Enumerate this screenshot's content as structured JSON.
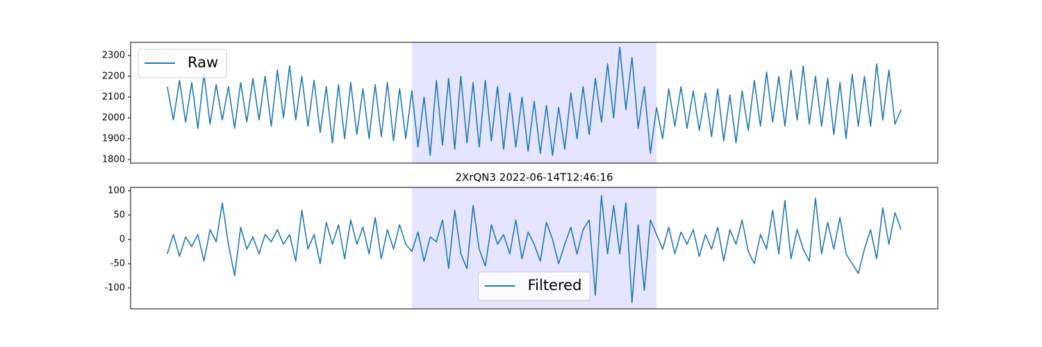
{
  "chart_data": [
    {
      "type": "line",
      "series": [
        {
          "name": "Raw",
          "color": "#1f77b4",
          "values": [
            2150,
            1990,
            2180,
            1980,
            2170,
            1950,
            2210,
            1970,
            2160,
            1990,
            2150,
            1950,
            2170,
            1980,
            2190,
            1990,
            2200,
            1960,
            2230,
            2000,
            2250,
            1990,
            2200,
            1960,
            2180,
            1930,
            2150,
            1880,
            2160,
            1900,
            2170,
            1920,
            2140,
            1900,
            2160,
            1910,
            2170,
            1890,
            2140,
            1900,
            2130,
            1860,
            2100,
            1820,
            2180,
            1870,
            2190,
            1850,
            2200,
            1880,
            2170,
            1860,
            2180,
            1890,
            2150,
            1850,
            2120,
            1860,
            2100,
            1840,
            2080,
            1830,
            2060,
            1820,
            2050,
            1850,
            2120,
            1900,
            2150,
            1920,
            2190,
            1980,
            2260,
            2000,
            2340,
            2040,
            2290,
            1950,
            2150,
            1830,
            2050,
            1900,
            2140,
            1960,
            2150,
            1950,
            2130,
            1940,
            2120,
            1910,
            2140,
            1890,
            2110,
            1880,
            2130,
            1940,
            2180,
            1960,
            2220,
            1980,
            2200,
            1960,
            2230,
            1990,
            2250,
            1970,
            2200,
            1960,
            2190,
            1920,
            2170,
            1900,
            2210,
            1960,
            2200,
            1960,
            2260,
            1990,
            2230,
            1970,
            2040
          ]
        }
      ],
      "xlim": [
        -6,
        126
      ],
      "ylim": [
        1783,
        2363
      ],
      "yticks": [
        1800,
        1900,
        2000,
        2100,
        2200,
        2300
      ],
      "span": [
        40,
        80
      ],
      "span_color": "#e5e5ff",
      "legend_loc": "upper left"
    },
    {
      "type": "line",
      "title": "2XrQN3 2022-06-14T12:46:16",
      "series": [
        {
          "name": "Filtered",
          "color": "#1f77b4",
          "values": [
            -30,
            10,
            -35,
            5,
            -15,
            10,
            -45,
            20,
            -5,
            75,
            -10,
            -75,
            25,
            -20,
            5,
            -30,
            10,
            -5,
            20,
            -10,
            10,
            -45,
            60,
            -20,
            10,
            -50,
            35,
            -10,
            30,
            -40,
            40,
            -10,
            25,
            -30,
            45,
            -40,
            20,
            -20,
            30,
            -10,
            -25,
            15,
            -45,
            5,
            -5,
            40,
            -60,
            60,
            -30,
            -60,
            70,
            -20,
            -55,
            30,
            -10,
            10,
            -30,
            40,
            -40,
            15,
            -10,
            -45,
            35,
            0,
            -50,
            -10,
            25,
            -30,
            20,
            40,
            -115,
            90,
            -30,
            70,
            -30,
            75,
            -130,
            30,
            -105,
            40,
            10,
            -20,
            25,
            -30,
            15,
            -10,
            20,
            -35,
            10,
            -20,
            25,
            -45,
            20,
            -10,
            40,
            -25,
            -50,
            10,
            -20,
            60,
            -30,
            80,
            -40,
            20,
            -20,
            -45,
            85,
            -30,
            35,
            -20,
            45,
            -30,
            -50,
            -70,
            -20,
            20,
            -40,
            65,
            -10,
            55,
            20
          ]
        }
      ],
      "xlim": [
        -6,
        126
      ],
      "ylim": [
        -143,
        107
      ],
      "yticks": [
        -100,
        -50,
        0,
        50,
        100
      ],
      "span": [
        40,
        80
      ],
      "span_color": "#e5e5ff",
      "legend_loc": "lower center"
    }
  ]
}
